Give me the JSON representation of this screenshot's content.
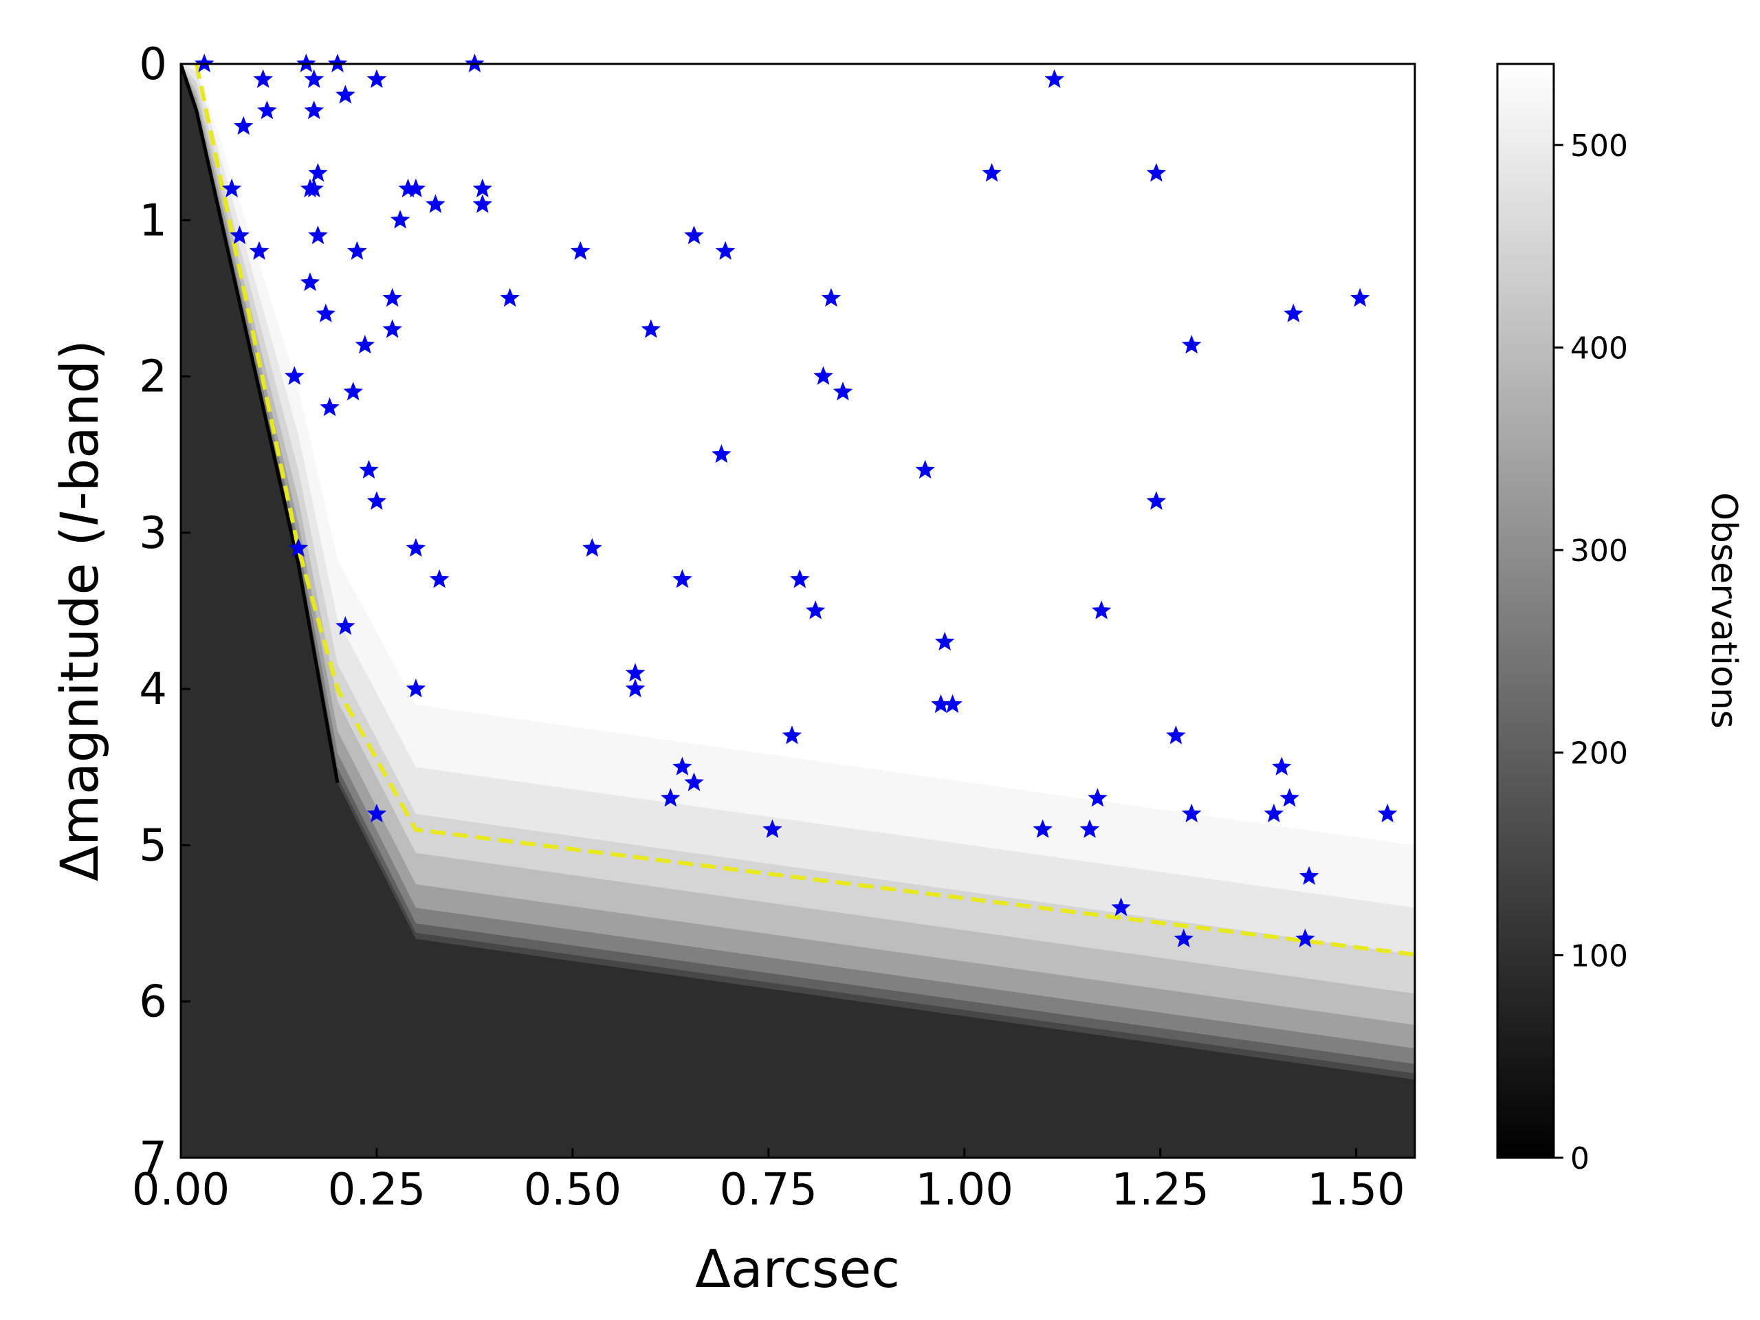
{
  "chart_data": {
    "type": "scatter",
    "xlabel": "Δarcsec",
    "ylabel_parts": [
      "Δmagnitude (",
      "I",
      "-band)"
    ],
    "xlim": [
      0.0,
      1.575
    ],
    "ylim": [
      0,
      7
    ],
    "y_inverted": true,
    "x_ticks": [
      0.0,
      0.25,
      0.5,
      0.75,
      1.0,
      1.25,
      1.5
    ],
    "x_tick_labels": [
      "0.00",
      "0.25",
      "0.50",
      "0.75",
      "1.00",
      "1.25",
      "1.50"
    ],
    "y_ticks": [
      0,
      1,
      2,
      3,
      4,
      5,
      6,
      7
    ],
    "y_tick_labels": [
      "0",
      "1",
      "2",
      "3",
      "4",
      "5",
      "6",
      "7"
    ],
    "grid": false,
    "background": {
      "type": "heatmap",
      "description_colormap": "gray",
      "colorbar": {
        "label": "Observations",
        "range": [
          0,
          540
        ],
        "ticks": [
          0,
          100,
          200,
          300,
          400,
          500
        ],
        "tick_labels": [
          "0",
          "100",
          "200",
          "300",
          "400",
          "500"
        ]
      },
      "transition_curve": [
        [
          0.0,
          0.0
        ],
        [
          0.02,
          0.3
        ],
        [
          0.15,
          3.2
        ],
        [
          0.2,
          4.6
        ],
        [
          0.3,
          5.6
        ],
        [
          1.575,
          6.5
        ]
      ]
    },
    "contrast_curve": {
      "style": "dashed",
      "color": "#e8e820",
      "x": [
        0.02,
        0.15,
        0.2,
        0.3,
        1.575
      ],
      "y": [
        0.0,
        3.1,
        4.0,
        4.9,
        5.7
      ]
    },
    "stars": {
      "marker": "star",
      "color": "#0000ee",
      "x": [
        0.03,
        0.16,
        0.17,
        0.2,
        0.105,
        0.17,
        0.25,
        0.375,
        0.21,
        0.11,
        0.08,
        0.17,
        0.065,
        0.165,
        0.175,
        0.29,
        0.3,
        0.385,
        0.385,
        0.325,
        0.28,
        0.075,
        0.1,
        0.175,
        0.225,
        0.165,
        0.27,
        0.185,
        0.27,
        0.235,
        0.145,
        0.22,
        0.19,
        0.24,
        0.25,
        0.15,
        0.3,
        0.33,
        0.21,
        0.3,
        0.25,
        0.42,
        0.51,
        0.525,
        0.6,
        0.58,
        0.58,
        0.64,
        0.64,
        0.655,
        0.625,
        0.655,
        0.695,
        0.69,
        0.79,
        0.81,
        0.78,
        0.755,
        0.83,
        0.82,
        0.845,
        0.95,
        0.975,
        0.97,
        0.985,
        1.035,
        1.115,
        1.245,
        1.245,
        1.29,
        1.505,
        1.42,
        1.175,
        1.27,
        1.1,
        1.16,
        1.17,
        1.29,
        1.2,
        1.28,
        1.395,
        1.405,
        1.415,
        1.44,
        1.435,
        1.54
      ],
      "y": [
        0.0,
        0.0,
        0.1,
        0.0,
        0.1,
        0.3,
        0.1,
        0.0,
        0.2,
        0.3,
        0.4,
        0.8,
        0.8,
        0.8,
        0.7,
        0.8,
        0.8,
        0.8,
        0.9,
        0.9,
        1.0,
        1.1,
        1.2,
        1.1,
        1.2,
        1.4,
        1.5,
        1.6,
        1.7,
        1.8,
        2.0,
        2.1,
        2.2,
        2.6,
        2.8,
        3.1,
        3.1,
        3.3,
        3.6,
        4.0,
        4.8,
        1.5,
        1.2,
        3.1,
        1.7,
        3.9,
        4.0,
        3.3,
        4.5,
        1.1,
        4.7,
        4.6,
        1.2,
        2.5,
        3.3,
        3.5,
        4.3,
        4.9,
        1.5,
        2.0,
        2.1,
        2.6,
        3.7,
        4.1,
        4.1,
        0.7,
        0.1,
        0.7,
        2.8,
        1.8,
        1.5,
        1.6,
        3.5,
        4.3,
        4.9,
        4.9,
        4.7,
        4.8,
        5.4,
        5.6,
        4.8,
        4.5,
        4.7,
        5.2,
        5.6,
        4.8
      ]
    }
  }
}
